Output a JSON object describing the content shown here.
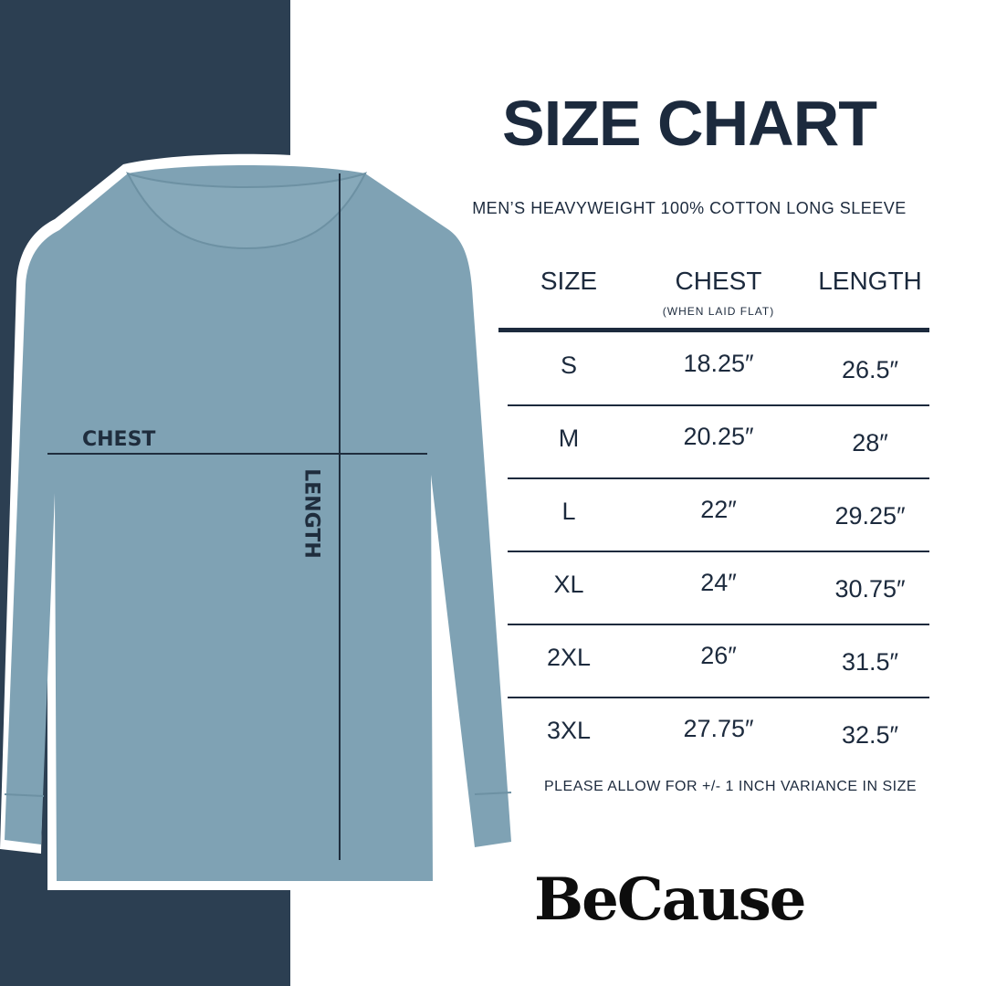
{
  "title": "SIZE CHART",
  "subtitle": "MEN’S HEAVYWEIGHT 100% COTTON LONG SLEEVE",
  "diagram": {
    "chest_label": "CHEST",
    "length_label": "LENGTH"
  },
  "table": {
    "headers": {
      "size": "SIZE",
      "chest": "CHEST",
      "chest_note": "(WHEN LAID FLAT)",
      "length": "LENGTH"
    },
    "rows": [
      {
        "size": "S",
        "chest": "18.25″",
        "length": "26.5″"
      },
      {
        "size": "M",
        "chest": "20.25″",
        "length": "28″"
      },
      {
        "size": "L",
        "chest": "22″",
        "length": "29.25″"
      },
      {
        "size": "XL",
        "chest": "24″",
        "length": "30.75″"
      },
      {
        "size": "2XL",
        "chest": "26″",
        "length": "31.5″"
      },
      {
        "size": "3XL",
        "chest": "27.75″",
        "length": "32.5″"
      }
    ]
  },
  "note": "PLEASE ALLOW FOR +/- 1 INCH VARIANCE IN SIZE",
  "brand": "BeCause",
  "colors": {
    "panel": "#2c3f52",
    "shirt": "#7fa2b4",
    "text": "#1c2a3d"
  }
}
